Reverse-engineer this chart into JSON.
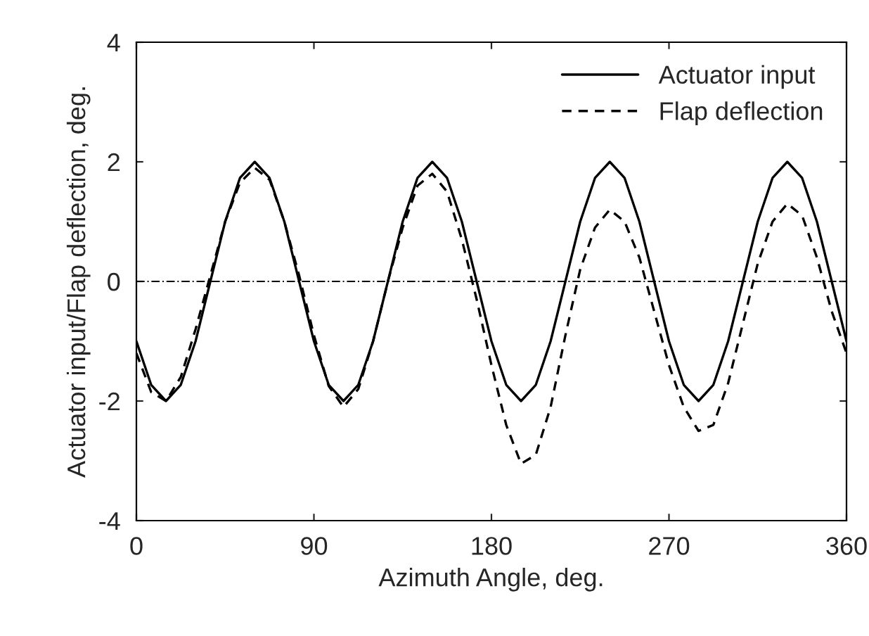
{
  "chart_data": {
    "type": "line",
    "xlabel": "Azimuth Angle, deg.",
    "ylabel": "Actuator input/Flap deflection, deg.",
    "x": [
      0,
      7.5,
      15,
      22.5,
      30,
      37.5,
      45,
      52.5,
      60,
      67.5,
      75,
      82.5,
      90,
      97.5,
      105,
      112.5,
      120,
      127.5,
      135,
      142.5,
      150,
      157.5,
      165,
      172.5,
      180,
      187.5,
      195,
      202.5,
      210,
      217.5,
      225,
      232.5,
      240,
      247.5,
      255,
      262.5,
      270,
      277.5,
      285,
      292.5,
      300,
      307.5,
      315,
      322.5,
      330,
      337.5,
      345,
      352.5,
      360
    ],
    "series": [
      {
        "name": "Actuator input",
        "color": "#000000",
        "line_style": "solid",
        "values": [
          -1.0,
          -1.73,
          -2.0,
          -1.73,
          -1.0,
          0.0,
          1.0,
          1.73,
          2.0,
          1.73,
          1.0,
          0.0,
          -1.0,
          -1.73,
          -2.0,
          -1.73,
          -1.0,
          0.0,
          1.0,
          1.73,
          2.0,
          1.73,
          1.0,
          0.0,
          -1.0,
          -1.73,
          -2.0,
          -1.73,
          -1.0,
          0.0,
          1.0,
          1.73,
          2.0,
          1.73,
          1.0,
          0.0,
          -1.0,
          -1.73,
          -2.0,
          -1.73,
          -1.0,
          0.0,
          1.0,
          1.73,
          2.0,
          1.73,
          1.0,
          0.0,
          -1.0
        ]
      },
      {
        "name": "Flap deflection",
        "color": "#000000",
        "line_style": "dashed",
        "values": [
          -1.2,
          -1.85,
          -2.0,
          -1.6,
          -0.8,
          0.1,
          1.0,
          1.65,
          1.9,
          1.7,
          1.0,
          0.1,
          -0.9,
          -1.75,
          -2.1,
          -1.8,
          -1.0,
          0.0,
          0.9,
          1.6,
          1.8,
          1.5,
          0.7,
          -0.3,
          -1.4,
          -2.4,
          -3.05,
          -2.9,
          -2.1,
          -0.9,
          0.2,
          0.9,
          1.2,
          1.0,
          0.4,
          -0.5,
          -1.4,
          -2.1,
          -2.5,
          -2.4,
          -1.7,
          -0.7,
          0.3,
          1.0,
          1.3,
          1.1,
          0.4,
          -0.5,
          -1.2
        ]
      }
    ],
    "xlim": [
      0,
      360
    ],
    "xticks": [
      0,
      90,
      180,
      270,
      360
    ],
    "ylim": [
      -4,
      4
    ],
    "yticks": [
      -4,
      -2,
      0,
      2,
      4
    ],
    "ref_lines": [
      {
        "axis": "y",
        "value": 0,
        "color": "#000000",
        "line_style": "dashdot"
      }
    ],
    "legend": "top right",
    "grid": false
  }
}
